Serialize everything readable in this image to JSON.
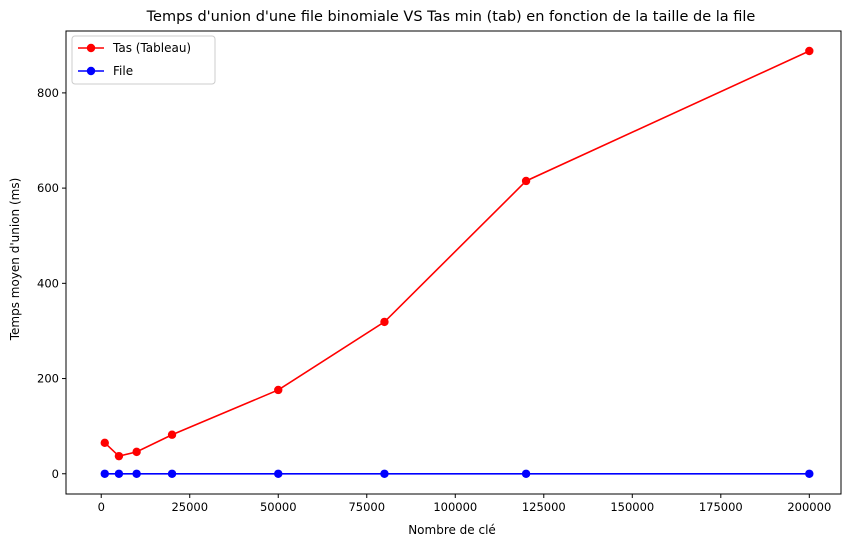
{
  "chart_data": {
    "type": "line",
    "title": "Temps d'union d'une file binomiale VS Tas min (tab) en fonction de la taille de la file",
    "xlabel": "Nombre de clé",
    "ylabel": "Temps moyen d'union (ms)",
    "x": [
      1000,
      5000,
      10000,
      20000,
      50000,
      80000,
      120000,
      200000
    ],
    "xlim": [
      -9950,
      208950
    ],
    "ylim": [
      -42.5,
      930
    ],
    "xticks": [
      0,
      25000,
      50000,
      75000,
      100000,
      125000,
      150000,
      175000,
      200000
    ],
    "xtick_labels": [
      "0",
      "25000",
      "50000",
      "75000",
      "100000",
      "125000",
      "150000",
      "175000",
      "200000"
    ],
    "yticks": [
      0,
      200,
      400,
      600,
      800
    ],
    "ytick_labels": [
      "0",
      "200",
      "400",
      "600",
      "800"
    ],
    "grid": false,
    "legend_position": "upper-left",
    "series": [
      {
        "name": "Tas (Tableau)",
        "color": "#ff0000",
        "marker": "circle",
        "values": [
          65,
          37,
          46,
          82,
          176,
          319,
          615,
          888
        ]
      },
      {
        "name": "File",
        "color": "#0000ff",
        "marker": "circle",
        "values": [
          0,
          0,
          0,
          0,
          0,
          0,
          0,
          0
        ]
      }
    ]
  }
}
